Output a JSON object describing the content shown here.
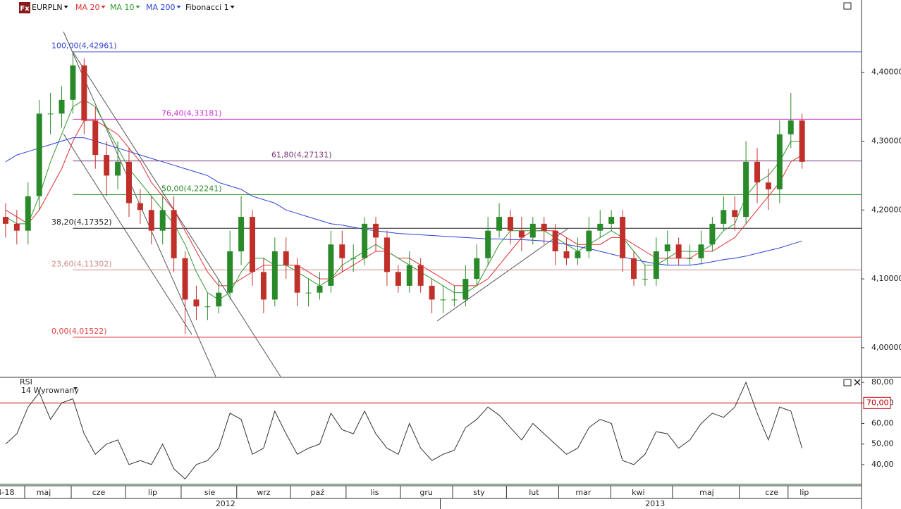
{
  "chart_data": [
    {
      "type": "candlestick",
      "icon": "Fx",
      "symbol": "EURPLN",
      "up_color": "#2a8a2a",
      "down_color": "#c0302a",
      "open": [
        4.19,
        4.18,
        4.17,
        4.22,
        4.34,
        4.34,
        4.36,
        4.41,
        4.33,
        4.28,
        4.25,
        4.27,
        4.21,
        4.2,
        4.17,
        4.2,
        4.13,
        4.07,
        4.06,
        4.06,
        4.08,
        4.14,
        4.19,
        4.11,
        4.07,
        4.14,
        4.12,
        4.08,
        4.08,
        4.09,
        4.15,
        4.13,
        4.13,
        4.18,
        4.16,
        4.11,
        4.09,
        4.12,
        4.09,
        4.07,
        4.07,
        4.07,
        4.1,
        4.13,
        4.17,
        4.19,
        4.17,
        4.16,
        4.18,
        4.17,
        4.14,
        4.13,
        4.14,
        4.17,
        4.18,
        4.19,
        4.13,
        4.1,
        4.1,
        4.14,
        4.15,
        4.13,
        4.13,
        4.15,
        4.18,
        4.2,
        4.19,
        4.27,
        4.24,
        4.23,
        4.31,
        4.33
      ],
      "high": [
        4.21,
        4.2,
        4.24,
        4.36,
        4.37,
        4.38,
        4.43,
        4.42,
        4.35,
        4.3,
        4.3,
        4.29,
        4.23,
        4.22,
        4.22,
        4.22,
        4.14,
        4.09,
        4.08,
        4.1,
        4.17,
        4.22,
        4.2,
        4.13,
        4.16,
        4.16,
        4.13,
        4.1,
        4.11,
        4.17,
        4.17,
        4.15,
        4.19,
        4.19,
        4.17,
        4.12,
        4.14,
        4.13,
        4.1,
        4.09,
        4.09,
        4.12,
        4.15,
        4.19,
        4.21,
        4.2,
        4.19,
        4.19,
        4.19,
        4.18,
        4.16,
        4.16,
        4.19,
        4.2,
        4.2,
        4.2,
        4.14,
        4.12,
        4.16,
        4.17,
        4.16,
        4.15,
        4.17,
        4.19,
        4.22,
        4.22,
        4.3,
        4.29,
        4.26,
        4.33,
        4.37,
        4.34
      ],
      "low": [
        4.16,
        4.15,
        4.15,
        4.2,
        4.31,
        4.32,
        4.34,
        4.31,
        4.26,
        4.22,
        4.23,
        4.19,
        4.18,
        4.15,
        4.15,
        4.11,
        4.02,
        4.04,
        4.04,
        4.05,
        4.07,
        4.12,
        4.09,
        4.05,
        4.06,
        4.1,
        4.06,
        4.06,
        4.07,
        4.08,
        4.11,
        4.11,
        4.12,
        4.14,
        4.09,
        4.08,
        4.08,
        4.08,
        4.05,
        4.05,
        4.06,
        4.06,
        4.09,
        4.12,
        4.16,
        4.15,
        4.14,
        4.15,
        4.15,
        4.12,
        4.12,
        4.12,
        4.13,
        4.16,
        4.17,
        4.11,
        4.09,
        4.09,
        4.09,
        4.12,
        4.12,
        4.12,
        4.12,
        4.14,
        4.17,
        4.17,
        4.18,
        4.21,
        4.2,
        4.21,
        4.29,
        4.26
      ],
      "close": [
        4.18,
        4.17,
        4.22,
        4.34,
        4.34,
        4.36,
        4.41,
        4.33,
        4.28,
        4.25,
        4.27,
        4.21,
        4.2,
        4.17,
        4.2,
        4.13,
        4.07,
        4.06,
        4.06,
        4.08,
        4.14,
        4.19,
        4.11,
        4.07,
        4.14,
        4.12,
        4.08,
        4.08,
        4.09,
        4.15,
        4.13,
        4.13,
        4.18,
        4.16,
        4.11,
        4.09,
        4.12,
        4.09,
        4.07,
        4.07,
        4.07,
        4.1,
        4.13,
        4.17,
        4.19,
        4.17,
        4.16,
        4.18,
        4.17,
        4.14,
        4.13,
        4.14,
        4.17,
        4.18,
        4.19,
        4.13,
        4.1,
        4.1,
        4.14,
        4.15,
        4.13,
        4.13,
        4.15,
        4.18,
        4.2,
        4.19,
        4.27,
        4.24,
        4.23,
        4.31,
        4.33,
        4.27
      ],
      "overlays": [
        {
          "name": "MA 20",
          "color": "#e03030",
          "values": [
            4.2,
            4.19,
            4.18,
            4.2,
            4.23,
            4.26,
            4.3,
            4.33,
            4.33,
            4.32,
            4.31,
            4.29,
            4.27,
            4.24,
            4.22,
            4.2,
            4.17,
            4.14,
            4.11,
            4.09,
            4.09,
            4.1,
            4.11,
            4.12,
            4.12,
            4.12,
            4.12,
            4.11,
            4.1,
            4.1,
            4.11,
            4.12,
            4.13,
            4.14,
            4.14,
            4.13,
            4.13,
            4.12,
            4.11,
            4.1,
            4.09,
            4.09,
            4.09,
            4.1,
            4.12,
            4.14,
            4.16,
            4.17,
            4.17,
            4.17,
            4.16,
            4.15,
            4.15,
            4.15,
            4.16,
            4.16,
            4.15,
            4.14,
            4.13,
            4.13,
            4.13,
            4.13,
            4.14,
            4.14,
            4.15,
            4.16,
            4.18,
            4.2,
            4.22,
            4.24,
            4.27,
            4.28
          ]
        },
        {
          "name": "MA 10",
          "color": "#2e9a2e",
          "values": [
            4.19,
            4.18,
            4.18,
            4.22,
            4.27,
            4.31,
            4.35,
            4.36,
            4.35,
            4.32,
            4.29,
            4.26,
            4.24,
            4.22,
            4.2,
            4.18,
            4.15,
            4.11,
            4.08,
            4.07,
            4.08,
            4.11,
            4.13,
            4.13,
            4.12,
            4.12,
            4.11,
            4.1,
            4.09,
            4.1,
            4.12,
            4.13,
            4.14,
            4.15,
            4.14,
            4.13,
            4.12,
            4.11,
            4.1,
            4.09,
            4.08,
            4.08,
            4.09,
            4.12,
            4.15,
            4.17,
            4.17,
            4.17,
            4.17,
            4.16,
            4.15,
            4.14,
            4.15,
            4.16,
            4.17,
            4.16,
            4.14,
            4.12,
            4.12,
            4.13,
            4.14,
            4.14,
            4.14,
            4.15,
            4.17,
            4.18,
            4.22,
            4.24,
            4.25,
            4.27,
            4.3,
            4.3
          ]
        },
        {
          "name": "MA 200",
          "color": "#2a3fd8",
          "values": [
            4.27,
            4.28,
            4.285,
            4.29,
            4.295,
            4.3,
            4.305,
            4.305,
            4.3,
            4.295,
            4.29,
            4.285,
            4.28,
            4.275,
            4.27,
            4.265,
            4.26,
            4.255,
            4.25,
            4.24,
            4.235,
            4.23,
            4.22,
            4.215,
            4.21,
            4.2,
            4.195,
            4.19,
            4.185,
            4.18,
            4.178,
            4.175,
            4.172,
            4.17,
            4.168,
            4.166,
            4.165,
            4.164,
            4.163,
            4.162,
            4.161,
            4.16,
            4.159,
            4.158,
            4.158,
            4.157,
            4.157,
            4.156,
            4.155,
            4.153,
            4.15,
            4.147,
            4.144,
            4.14,
            4.136,
            4.132,
            4.128,
            4.125,
            4.122,
            4.12,
            4.12,
            4.12,
            4.122,
            4.125,
            4.128,
            4.13,
            4.133,
            4.137,
            4.141,
            4.145,
            4.15,
            4.155
          ]
        }
      ],
      "fibonacci": {
        "name": "Fibonacci 1",
        "levels": [
          {
            "value": 4.42961,
            "label": "100,00(4,42961)",
            "color": "#3344cc"
          },
          {
            "value": 4.33181,
            "label": "76,40(4,33181)",
            "color": "#cc33cc"
          },
          {
            "value": 4.27131,
            "label": "61,80(4,27131)",
            "color": "#7a3a7a"
          },
          {
            "value": 4.22241,
            "label": "50,00(4,22241)",
            "color": "#2a8a2a"
          },
          {
            "value": 4.17352,
            "label": "38,20(4,17352)",
            "color": "#222222"
          },
          {
            "value": 4.11302,
            "label": "23,60(4,11302)",
            "color": "#d08a8a"
          },
          {
            "value": 4.01522,
            "label": "0,00(4,01522)",
            "color": "#e04040"
          }
        ]
      },
      "ylim": [
        3.958,
        4.505
      ],
      "yticks": [
        {
          "value": 4.0,
          "label": "4,00000"
        },
        {
          "value": 4.1,
          "label": "4,10000"
        },
        {
          "value": 4.2,
          "label": "4,20000"
        },
        {
          "value": 4.3,
          "label": "4,30000"
        },
        {
          "value": 4.4,
          "label": "4,40000"
        }
      ],
      "xlim": [
        -0.5,
        76.3
      ],
      "xticks": [
        {
          "value": 0,
          "label": "4-18"
        },
        {
          "value": 3.4,
          "label": "maj"
        },
        {
          "value": 8.3,
          "label": "cze"
        },
        {
          "value": 13.1,
          "label": "lip"
        },
        {
          "value": 18.2,
          "label": "sie"
        },
        {
          "value": 23,
          "label": "wrz"
        },
        {
          "value": 27.8,
          "label": "paź"
        },
        {
          "value": 32.9,
          "label": "lis"
        },
        {
          "value": 37.5,
          "label": "gru"
        },
        {
          "value": 42.2,
          "label": "sty"
        },
        {
          "value": 47.1,
          "label": "lut"
        },
        {
          "value": 51.5,
          "label": "mar"
        },
        {
          "value": 56.4,
          "label": "kwi"
        },
        {
          "value": 62.5,
          "label": "maj"
        },
        {
          "value": 68.3,
          "label": "cze"
        },
        {
          "value": 71.2,
          "label": "lip"
        }
      ],
      "year_ticks": [
        {
          "value": 19.6,
          "label": "2012"
        },
        {
          "value": 57.9,
          "label": "2013"
        }
      ]
    },
    {
      "type": "line",
      "title": "RSI",
      "subtitle": "14 Wyrownany",
      "color": "#333333",
      "values": [
        50,
        55,
        68,
        75,
        62,
        70,
        72,
        55,
        45,
        50,
        52,
        40,
        42,
        40,
        50,
        38,
        33,
        40,
        42,
        48,
        65,
        62,
        45,
        48,
        66,
        55,
        45,
        48,
        50,
        65,
        57,
        55,
        66,
        55,
        48,
        45,
        60,
        48,
        42,
        45,
        47,
        58,
        62,
        68,
        64,
        58,
        52,
        60,
        55,
        50,
        45,
        48,
        58,
        62,
        60,
        42,
        40,
        45,
        56,
        55,
        48,
        52,
        60,
        65,
        63,
        68,
        80,
        65,
        52,
        68,
        66,
        48
      ],
      "levels": [
        {
          "value": 70,
          "label": "70,00"
        }
      ],
      "level_color": "#c00000",
      "ylim": [
        29.7,
        82.1
      ],
      "yticks": [
        {
          "value": 40,
          "label": "40,00"
        },
        {
          "value": 50,
          "label": "50,00"
        },
        {
          "value": 60,
          "label": "60,00"
        },
        {
          "value": 70,
          "label": "70,00"
        },
        {
          "value": 80,
          "label": "80,00"
        }
      ],
      "xlim": [
        -0.5,
        76.3
      ]
    }
  ]
}
